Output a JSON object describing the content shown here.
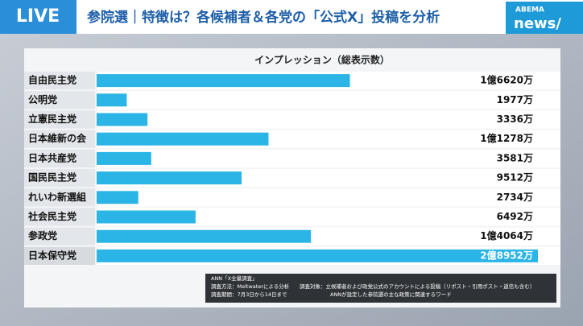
{
  "header": {
    "live": "LIVE",
    "title": "参院選｜特徴は？各候補者＆各党の「公式X」投稿を分析",
    "logo_top": "ABEMA",
    "logo_bottom": "news/"
  },
  "chart_data": {
    "type": "bar",
    "orientation": "horizontal",
    "title": "インプレッション（総表示数）",
    "categories": [
      "自由民主党",
      "公明党",
      "立憲民主党",
      "日本維新の会",
      "日本共産党",
      "国民民主党",
      "れいわ新選組",
      "社会民主党",
      "参政党",
      "日本保守党"
    ],
    "values": [
      16620,
      1977,
      3336,
      11278,
      3581,
      9512,
      2734,
      6492,
      14064,
      28952
    ],
    "value_labels": [
      "1億6620万",
      "1977万",
      "3336万",
      "1億1278万",
      "3581万",
      "9512万",
      "2734万",
      "6492万",
      "1億4064万",
      "2億8952万"
    ],
    "color": "#2bb5e6"
  },
  "notes": [
    "ANN「X全量調査」",
    "調査方法：Meltwaterによる分析",
    "調査期間：7月3日から14日まで",
    "調査対象：立候補者および政党公式のアカウントによる投稿（リポスト・引用ポスト・返信も含む）",
    "ANNが設定した参院選の主な政策に関連するワード"
  ]
}
